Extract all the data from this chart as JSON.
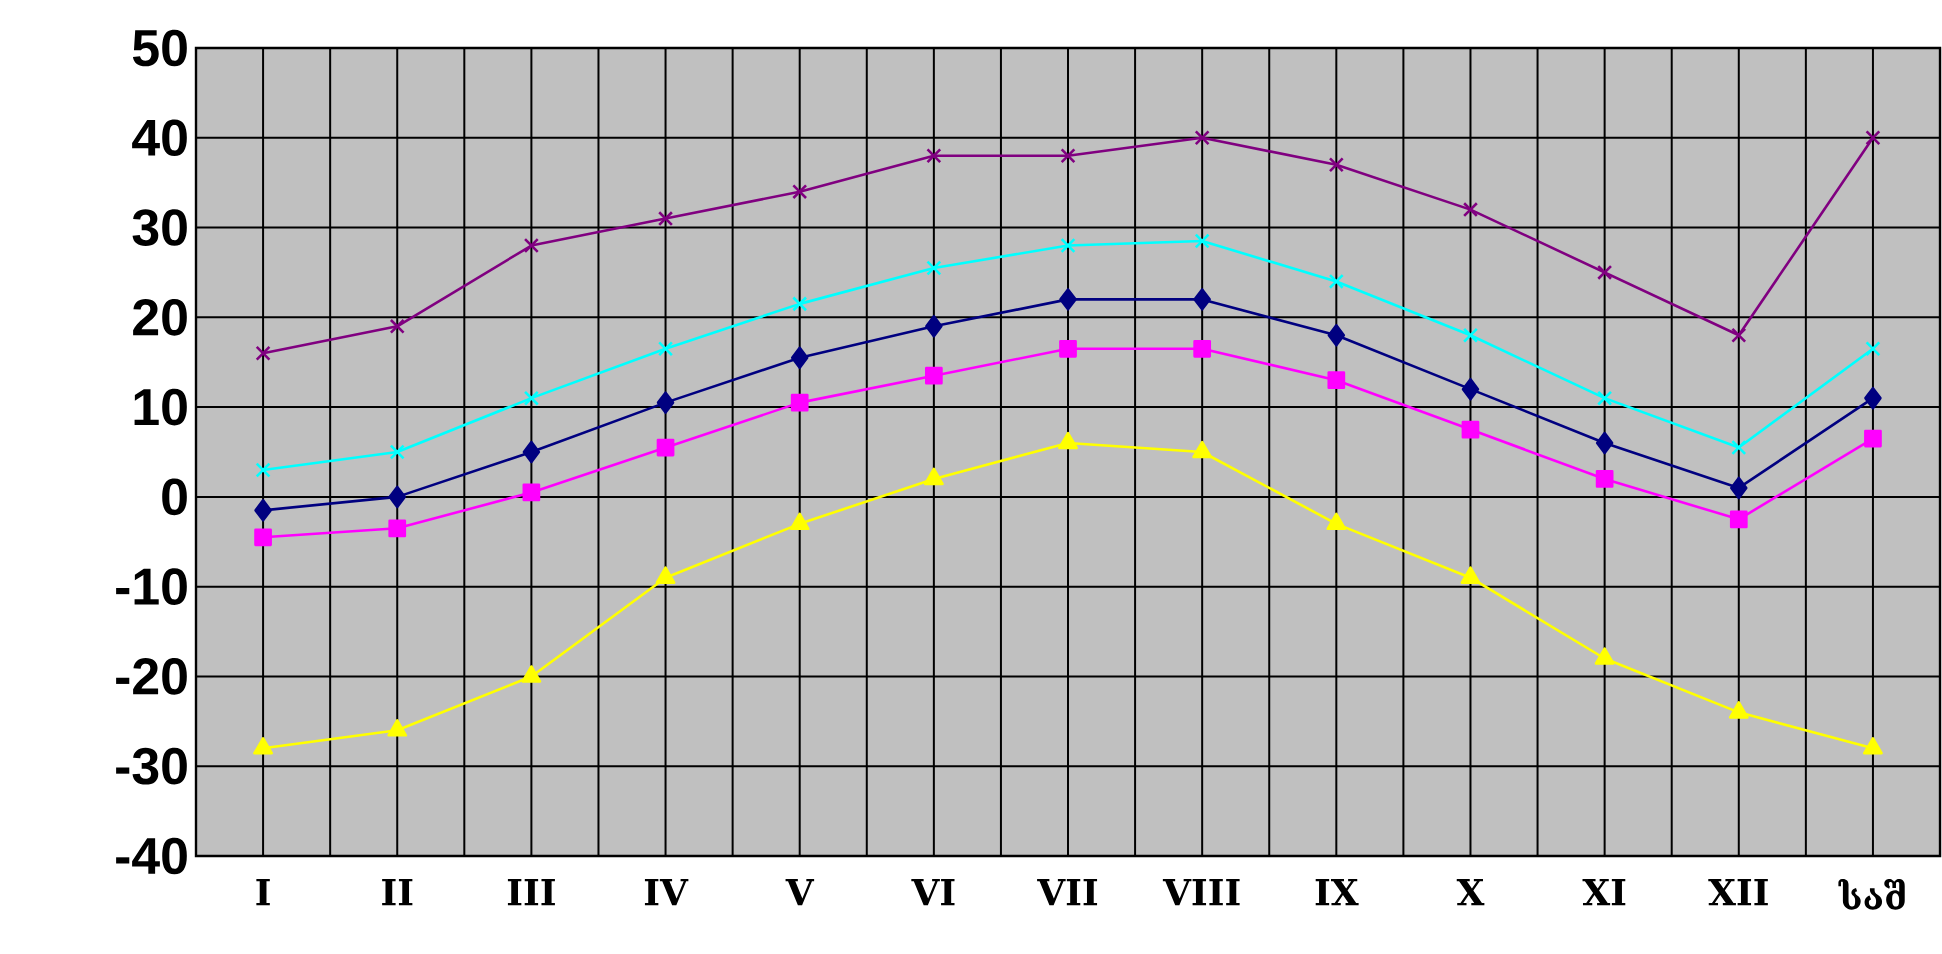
{
  "chart_data": {
    "type": "line",
    "categories": [
      "I",
      "II",
      "III",
      "IV",
      "V",
      "VI",
      "VII",
      "VIII",
      "IX",
      "X",
      "XI",
      "XII",
      "საშ"
    ],
    "series": [
      {
        "color": "#800080",
        "marker": "cross",
        "values": [
          16,
          19,
          28,
          31,
          34,
          38,
          38,
          40,
          37,
          32,
          25,
          18,
          40
        ]
      },
      {
        "color": "#00ffff",
        "marker": "cross",
        "values": [
          3,
          5,
          11,
          16.5,
          21.5,
          25.5,
          28,
          28.5,
          24,
          18,
          11,
          5.5,
          16.5
        ]
      },
      {
        "color": "#000080",
        "marker": "diamond",
        "values": [
          -1.5,
          0,
          5,
          10.5,
          15.5,
          19,
          22,
          22,
          18,
          12,
          6,
          1,
          11
        ]
      },
      {
        "color": "#ff00ff",
        "marker": "square",
        "values": [
          -4.5,
          -3.5,
          0.5,
          5.5,
          10.5,
          13.5,
          16.5,
          16.5,
          13,
          7.5,
          2,
          -2.5,
          6.5
        ]
      },
      {
        "color": "#ffff00",
        "marker": "triangle",
        "values": [
          -28,
          -26,
          -20,
          -9,
          -3,
          2,
          6,
          5,
          -3,
          -9,
          -18,
          -24,
          -28
        ]
      }
    ],
    "ylim": [
      -40,
      50
    ],
    "yticks": [
      -40,
      -30,
      -20,
      -10,
      0,
      10,
      20,
      30,
      40,
      50
    ],
    "grid": true
  }
}
